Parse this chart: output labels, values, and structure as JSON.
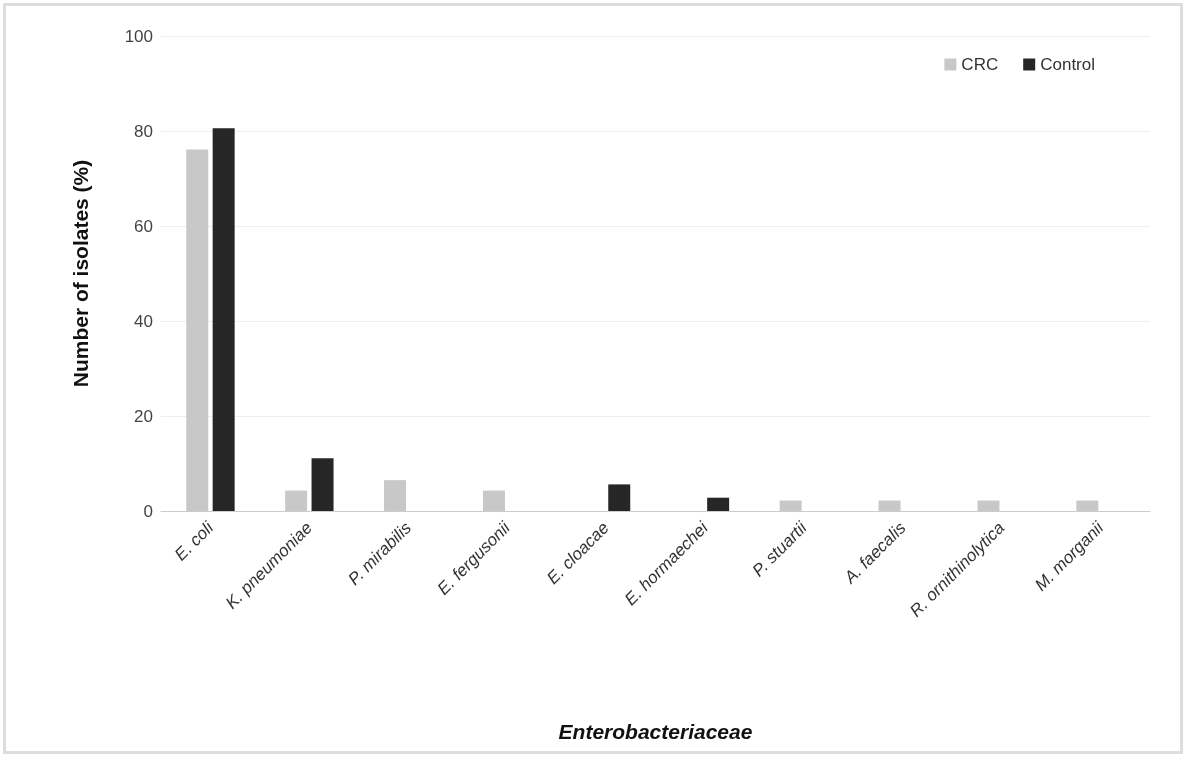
{
  "chart_data": {
    "type": "bar",
    "xlabel": "Enterobacteriaceae",
    "ylabel": "Number of isolates (%)",
    "categories": [
      "E. coli",
      "K. pneumoniae",
      "P. mirabilis",
      "E. fergusonii",
      "E. cloacae",
      "E. hormaechei",
      "P. stuartii",
      "A. faecalis",
      "R. ornithinolytica",
      "M. morganii"
    ],
    "series": [
      {
        "name": "CRC",
        "color": "#c8c8c8",
        "values": [
          76.1,
          4.3,
          6.5,
          4.3,
          0,
          0,
          2.2,
          2.2,
          2.2,
          2.2
        ]
      },
      {
        "name": "Control",
        "color": "#262626",
        "values": [
          80.6,
          11.1,
          0,
          0,
          5.6,
          2.8,
          0,
          0,
          0,
          0
        ]
      }
    ],
    "ylim": [
      0,
      100
    ],
    "yticks": [
      0,
      20,
      40,
      60,
      80,
      100
    ],
    "grid": "y",
    "legend": "top right"
  }
}
